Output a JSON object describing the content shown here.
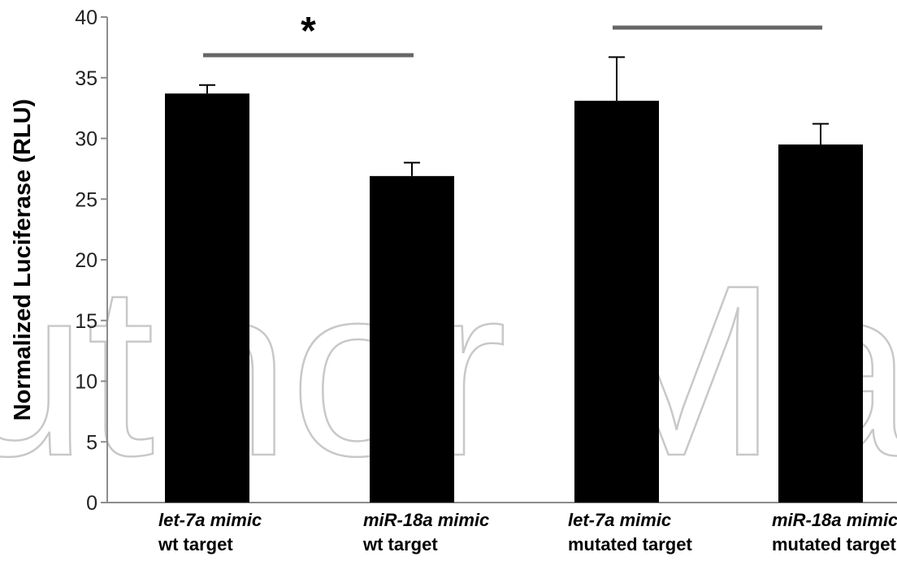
{
  "chart_data": {
    "type": "bar",
    "ylabel": "Normalized Luciferase (RLU)",
    "xlabel": "",
    "ylim": [
      0,
      40
    ],
    "yticks": [
      0,
      5,
      10,
      15,
      20,
      25,
      30,
      35,
      40
    ],
    "grid": false,
    "categories": [
      {
        "line1": "let-7a mimic",
        "line2": "wt target"
      },
      {
        "line1": "miR-18a mimic",
        "line2": "wt target"
      },
      {
        "line1": "let-7a mimic",
        "line2": "mutated target"
      },
      {
        "line1": "miR-18a mimic",
        "line2": "mutated target"
      }
    ],
    "values": [
      33.7,
      26.9,
      33.1,
      29.5
    ],
    "errors": [
      0.7,
      1.1,
      3.6,
      1.7
    ],
    "bar_color": "#000000",
    "significance": [
      {
        "from": 0,
        "to": 1,
        "label": "*"
      },
      {
        "from": 2,
        "to": 3,
        "label": ""
      }
    ],
    "bracket_color": "#666666",
    "watermark": "uthor Man"
  }
}
